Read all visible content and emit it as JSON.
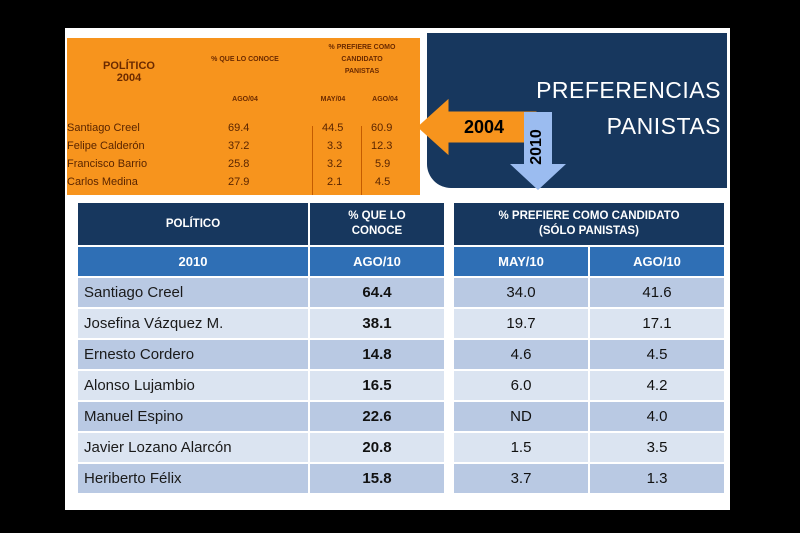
{
  "title": {
    "line1": "PREFERENCIAS",
    "line2": "PANISTAS"
  },
  "arrows": {
    "left": "2004",
    "down": "2010"
  },
  "table2004": {
    "h_politico": "POLÍTICO",
    "h_year": "2004",
    "h_conoce": "% QUE LO CONOCE",
    "h_prefiere1": "% PREFIERE COMO",
    "h_prefiere2": "CANDIDATO",
    "h_prefiere3": "PANISTAS",
    "sub": [
      "AGO/04",
      "MAY/04",
      "AGO/04"
    ],
    "rows": [
      {
        "name": "Santiago Creel",
        "v1": "69.4",
        "v2": "44.5",
        "v3": "60.9"
      },
      {
        "name": "Felipe Calderón",
        "v1": "37.2",
        "v2": "3.3",
        "v3": "12.3"
      },
      {
        "name": "Francisco Barrio",
        "v1": "25.8",
        "v2": "3.2",
        "v3": "5.9"
      },
      {
        "name": "Carlos Medina",
        "v1": "27.9",
        "v2": "2.1",
        "v3": "4.5"
      }
    ]
  },
  "table2010": {
    "h_politico": "POLÍTICO",
    "h_conoce1": "% QUE LO",
    "h_conoce2": "CONOCE",
    "h_prefiere1": "% PREFIERE COMO CANDIDATO",
    "h_prefiere2": "(SÓLO PANISTAS)",
    "sub": [
      "2010",
      "AGO/10",
      "MAY/10",
      "AGO/10"
    ],
    "rows": [
      {
        "name": "Santiago Creel",
        "v1": "64.4",
        "v2": "34.0",
        "v3": "41.6"
      },
      {
        "name": "Josefina Vázquez M.",
        "v1": "38.1",
        "v2": "19.7",
        "v3": "17.1"
      },
      {
        "name": "Ernesto Cordero",
        "v1": "14.8",
        "v2": "4.6",
        "v3": "4.5"
      },
      {
        "name": "Alonso Lujambio",
        "v1": "16.5",
        "v2": "6.0",
        "v3": "4.2"
      },
      {
        "name": "Manuel Espino",
        "v1": "22.6",
        "v2": "ND",
        "v3": "4.0"
      },
      {
        "name": "Javier Lozano Alarcón",
        "v1": "20.8",
        "v2": "1.5",
        "v3": "3.5"
      },
      {
        "name": "Heriberto Félix",
        "v1": "15.8",
        "v2": "3.7",
        "v3": "1.3"
      }
    ]
  },
  "colors": {
    "orange": "#f7941d",
    "navy": "#17375e",
    "blue": "#2f6fb5",
    "arrow": "#9bbcf0"
  }
}
